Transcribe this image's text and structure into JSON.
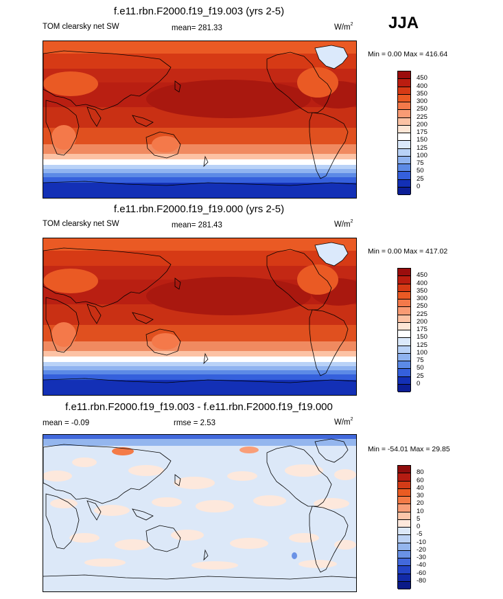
{
  "season": "JJA",
  "panels": [
    {
      "title": "f.e11.rbn.F2000.f19_f19.003 (yrs 2-5)",
      "left_label": "TOM clearsky net SW",
      "mid_label": "mean= 281.33",
      "units_base": "W/m",
      "units_sup": "2",
      "minmax_label": "Min =   0.00 Max = 416.64",
      "legend_labels": [
        "450",
        "400",
        "350",
        "300",
        "250",
        "225",
        "200",
        "175",
        "150",
        "125",
        "100",
        "75",
        "50",
        "25",
        "0"
      ],
      "legend_colors": [
        "#9b0d0d",
        "#bb1d10",
        "#d63a15",
        "#ea5a24",
        "#f4794a",
        "#f99b74",
        "#fcc2a4",
        "#fde6d6",
        "#ffffff",
        "#dbe9fb",
        "#b9d2f7",
        "#8fb3f0",
        "#5c8ae6",
        "#3560dc",
        "#1330b6",
        "#0c1e96"
      ],
      "map_type": "clearsky"
    },
    {
      "title": "f.e11.rbn.F2000.f19_f19.000 (yrs 2-5)",
      "left_label": "TOM clearsky net SW",
      "mid_label": "mean= 281.43",
      "units_base": "W/m",
      "units_sup": "2",
      "minmax_label": "Min =   0.00 Max = 417.02",
      "legend_labels": [
        "450",
        "400",
        "350",
        "300",
        "250",
        "225",
        "200",
        "175",
        "150",
        "125",
        "100",
        "75",
        "50",
        "25",
        "0"
      ],
      "legend_colors": [
        "#9b0d0d",
        "#bb1d10",
        "#d63a15",
        "#ea5a24",
        "#f4794a",
        "#f99b74",
        "#fcc2a4",
        "#fde6d6",
        "#ffffff",
        "#dbe9fb",
        "#b9d2f7",
        "#8fb3f0",
        "#5c8ae6",
        "#3560dc",
        "#1330b6",
        "#0c1e96"
      ],
      "map_type": "clearsky"
    },
    {
      "title": "f.e11.rbn.F2000.f19_f19.003 - f.e11.rbn.F2000.f19_f19.000",
      "left_label": "mean =  -0.09",
      "mid_label": "rmse =   2.53",
      "units_base": "W/m",
      "units_sup": "2",
      "minmax_label": "Min = -54.01 Max =  29.85",
      "legend_labels": [
        "80",
        "60",
        "40",
        "30",
        "20",
        "10",
        "5",
        "0",
        "-5",
        "-10",
        "-20",
        "-30",
        "-40",
        "-60",
        "-80"
      ],
      "legend_colors": [
        "#8f0d0d",
        "#b51c12",
        "#d33b17",
        "#ea5b22",
        "#f47b47",
        "#f99e78",
        "#fcc6aa",
        "#fde8dc",
        "#dce8f8",
        "#bcd2f4",
        "#94b6ee",
        "#6a92e6",
        "#4269dc",
        "#2344c6",
        "#122aa8",
        "#0b1a88"
      ],
      "map_type": "diff"
    }
  ]
}
